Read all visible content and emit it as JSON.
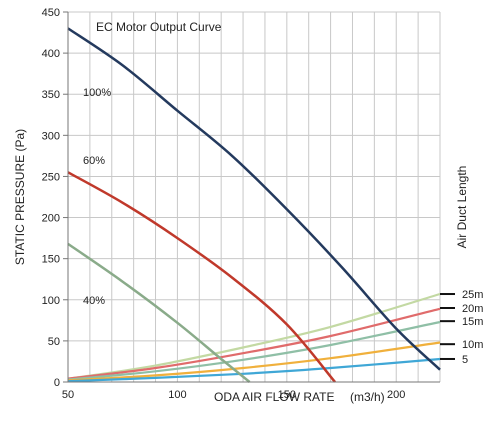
{
  "chart_data": {
    "type": "line",
    "title": "EC Motor Output Curve",
    "xlabel_main": "ODA AIR FLOW RATE",
    "xlabel_unit": "(m3/h)",
    "ylabel": "STATIC PRESSURE  (Pa)",
    "right_label": "Air Duct Length",
    "xlim": [
      50,
      220
    ],
    "ylim": [
      0,
      450
    ],
    "x_ticks": [
      50,
      100,
      150,
      200
    ],
    "y_ticks": [
      0,
      50,
      100,
      150,
      200,
      250,
      300,
      350,
      400,
      450
    ],
    "x_grid_step": 10,
    "y_grid_step": 50,
    "grid": true,
    "motor_curves": [
      {
        "name": "100%",
        "label": "100%",
        "color": "#243a5e",
        "points": [
          [
            50,
            430
          ],
          [
            75,
            385
          ],
          [
            100,
            330
          ],
          [
            125,
            275
          ],
          [
            150,
            210
          ],
          [
            175,
            140
          ],
          [
            200,
            65
          ],
          [
            220,
            15
          ]
        ]
      },
      {
        "name": "60%",
        "label": "60%",
        "color": "#c0392b",
        "points": [
          [
            50,
            255
          ],
          [
            75,
            218
          ],
          [
            100,
            175
          ],
          [
            125,
            127
          ],
          [
            150,
            70
          ],
          [
            172,
            0
          ]
        ]
      },
      {
        "name": "40%",
        "label": "40%",
        "color": "#8aab8a",
        "points": [
          [
            50,
            168
          ],
          [
            75,
            122
          ],
          [
            100,
            72
          ],
          [
            120,
            28
          ],
          [
            133,
            0
          ]
        ]
      }
    ],
    "duct_curves": [
      {
        "name": "25m",
        "label": "25m",
        "color": "#c3d9a3",
        "points": [
          [
            50,
            4
          ],
          [
            90,
            20
          ],
          [
            130,
            42
          ],
          [
            170,
            67
          ],
          [
            220,
            107
          ]
        ]
      },
      {
        "name": "20m",
        "label": "20m",
        "color": "#e06b6b",
        "points": [
          [
            50,
            4
          ],
          [
            90,
            17
          ],
          [
            130,
            35
          ],
          [
            170,
            56
          ],
          [
            220,
            89
          ]
        ]
      },
      {
        "name": "15m",
        "label": "15m",
        "color": "#8fbfa6",
        "points": [
          [
            50,
            3
          ],
          [
            90,
            13
          ],
          [
            130,
            27
          ],
          [
            170,
            45
          ],
          [
            220,
            73
          ]
        ]
      },
      {
        "name": "10m",
        "label": "10m",
        "color": "#f0b03c",
        "points": [
          [
            50,
            2
          ],
          [
            90,
            8
          ],
          [
            130,
            17
          ],
          [
            170,
            29
          ],
          [
            220,
            48
          ]
        ]
      },
      {
        "name": "5",
        "label": "5",
        "color": "#3fa7d6",
        "points": [
          [
            50,
            1
          ],
          [
            90,
            5
          ],
          [
            130,
            10
          ],
          [
            170,
            17
          ],
          [
            220,
            28
          ]
        ]
      }
    ],
    "duct_label_values": [
      107,
      90,
      74,
      46,
      28
    ]
  }
}
